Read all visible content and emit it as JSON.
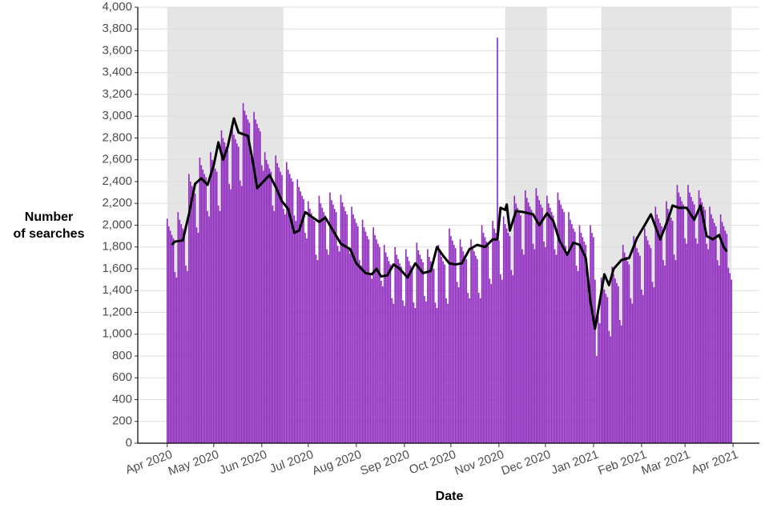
{
  "chart_data": {
    "type": "bar",
    "xlabel": "Date",
    "ylabel_lines": [
      "Number",
      "of searches"
    ],
    "color": "#8f2bbf",
    "xlim": [
      -19,
      382
    ],
    "ylim": [
      0,
      4000
    ],
    "grid": true,
    "shaded_color": "#e5e5e5",
    "shaded": [
      [
        0,
        75
      ],
      [
        218,
        245
      ],
      [
        280,
        364
      ]
    ],
    "xticks": [
      {
        "value": 0,
        "label": "Apr 2020"
      },
      {
        "value": 30,
        "label": "May 2020"
      },
      {
        "value": 61,
        "label": "Jun 2020"
      },
      {
        "value": 91,
        "label": "Jul 2020"
      },
      {
        "value": 122,
        "label": "Aug 2020"
      },
      {
        "value": 153,
        "label": "Sep 2020"
      },
      {
        "value": 183,
        "label": "Oct 2020"
      },
      {
        "value": 214,
        "label": "Nov 2020"
      },
      {
        "value": 244,
        "label": "Dec 2020"
      },
      {
        "value": 275,
        "label": "Jan 2021"
      },
      {
        "value": 306,
        "label": "Feb 2021"
      },
      {
        "value": 334,
        "label": "Mar 2021"
      },
      {
        "value": 365,
        "label": "Apr 2021"
      }
    ],
    "yticks": [
      0,
      200,
      400,
      600,
      800,
      {
        "value": 1000,
        "label": "1,000"
      },
      {
        "value": 1200,
        "label": "1,200"
      },
      {
        "value": 1400,
        "label": "1,400"
      },
      {
        "value": 1600,
        "label": "1,600"
      },
      {
        "value": 1800,
        "label": "1,800"
      },
      {
        "value": 2000,
        "label": "2,000"
      },
      {
        "value": 2200,
        "label": "2,200"
      },
      {
        "value": 2400,
        "label": "2,400"
      },
      {
        "value": 2600,
        "label": "2,600"
      },
      {
        "value": 2800,
        "label": "2,800"
      },
      {
        "value": 3000,
        "label": "3,000"
      },
      {
        "value": 3200,
        "label": "3,200"
      },
      {
        "value": 3400,
        "label": "3,400"
      },
      {
        "value": 3600,
        "label": "3,600"
      },
      {
        "value": 3800,
        "label": "3,800"
      },
      {
        "value": 4000,
        "label": "4,000"
      }
    ],
    "x": [
      0,
      1,
      2,
      3,
      4,
      5,
      6,
      7,
      8,
      9,
      10,
      11,
      12,
      13,
      14,
      15,
      16,
      17,
      18,
      19,
      20,
      21,
      22,
      23,
      24,
      25,
      26,
      27,
      28,
      29,
      30,
      31,
      32,
      33,
      34,
      35,
      36,
      37,
      38,
      39,
      40,
      41,
      42,
      43,
      44,
      45,
      46,
      47,
      48,
      49,
      50,
      51,
      52,
      53,
      54,
      55,
      56,
      57,
      58,
      59,
      60,
      61,
      62,
      63,
      64,
      65,
      66,
      67,
      68,
      69,
      70,
      71,
      72,
      73,
      74,
      75,
      76,
      77,
      78,
      79,
      80,
      81,
      82,
      83,
      84,
      85,
      86,
      87,
      88,
      89,
      90,
      91,
      92,
      93,
      94,
      95,
      96,
      97,
      98,
      99,
      100,
      101,
      102,
      103,
      104,
      105,
      106,
      107,
      108,
      109,
      110,
      111,
      112,
      113,
      114,
      115,
      116,
      117,
      118,
      119,
      120,
      121,
      122,
      123,
      124,
      125,
      126,
      127,
      128,
      129,
      130,
      131,
      132,
      133,
      134,
      135,
      136,
      137,
      138,
      139,
      140,
      141,
      142,
      143,
      144,
      145,
      146,
      147,
      148,
      149,
      150,
      151,
      152,
      153,
      154,
      155,
      156,
      157,
      158,
      159,
      160,
      161,
      162,
      163,
      164,
      165,
      166,
      167,
      168,
      169,
      170,
      171,
      172,
      173,
      174,
      175,
      176,
      177,
      178,
      179,
      180,
      181,
      182,
      183,
      184,
      185,
      186,
      187,
      188,
      189,
      190,
      191,
      192,
      193,
      194,
      195,
      196,
      197,
      198,
      199,
      200,
      201,
      202,
      203,
      204,
      205,
      206,
      207,
      208,
      209,
      210,
      211,
      212,
      213,
      214,
      215,
      216,
      217,
      218,
      219,
      220,
      221,
      222,
      223,
      224,
      225,
      226,
      227,
      228,
      229,
      230,
      231,
      232,
      233,
      234,
      235,
      236,
      237,
      238,
      239,
      240,
      241,
      242,
      243,
      244,
      245,
      246,
      247,
      248,
      249,
      250,
      251,
      252,
      253,
      254,
      255,
      256,
      257,
      258,
      259,
      260,
      261,
      262,
      263,
      264,
      265,
      266,
      267,
      268,
      269,
      270,
      271,
      272,
      273,
      274,
      275,
      276,
      277,
      278,
      279,
      280,
      281,
      282,
      283,
      284,
      285,
      286,
      287,
      288,
      289,
      290,
      291,
      292,
      293,
      294,
      295,
      296,
      297,
      298,
      299,
      300,
      301,
      302,
      303,
      304,
      305,
      306,
      307,
      308,
      309,
      310,
      311,
      312,
      313,
      314,
      315,
      316,
      317,
      318,
      319,
      320,
      321,
      322,
      323,
      324,
      325,
      326,
      327,
      328,
      329,
      330,
      331,
      332,
      333,
      334,
      335,
      336,
      337,
      338,
      339,
      340,
      341,
      342,
      343,
      344,
      345,
      346,
      347,
      348,
      349,
      350,
      351,
      352,
      353,
      354,
      355,
      356,
      357,
      358,
      359,
      360,
      361,
      362,
      363,
      364
    ],
    "values": [
      2060,
      1990,
      1950,
      1910,
      1880,
      1570,
      1520,
      2120,
      2050,
      2010,
      1970,
      1940,
      1630,
      1580,
      2470,
      2400,
      2360,
      2320,
      2290,
      1980,
      1930,
      2620,
      2550,
      2510,
      2470,
      2440,
      2130,
      2080,
      2670,
      2600,
      2560,
      2520,
      2490,
      2180,
      2130,
      2870,
      2800,
      2760,
      2720,
      2690,
      2380,
      2330,
      2900,
      2830,
      2790,
      2750,
      2720,
      2410,
      2360,
      3120,
      3050,
      3010,
      2970,
      2940,
      2630,
      2580,
      3040,
      2970,
      2930,
      2890,
      2860,
      2550,
      2500,
      2670,
      2600,
      2560,
      2520,
      2490,
      2180,
      2130,
      2640,
      2570,
      2530,
      2490,
      2460,
      2150,
      2100,
      2580,
      2510,
      2470,
      2430,
      2400,
      2090,
      2040,
      2420,
      2350,
      2310,
      2270,
      2240,
      1930,
      1880,
      2220,
      2150,
      2110,
      2070,
      2040,
      1730,
      1680,
      2270,
      2200,
      2160,
      2120,
      2090,
      1780,
      1730,
      2300,
      2230,
      2190,
      2150,
      2120,
      1810,
      1760,
      2280,
      2210,
      2170,
      2130,
      2100,
      1790,
      1740,
      2170,
      2100,
      2060,
      2020,
      1990,
      1680,
      1630,
      2050,
      1980,
      1940,
      1900,
      1870,
      1560,
      1510,
      1980,
      1910,
      1870,
      1830,
      1800,
      1490,
      1440,
      1820,
      1750,
      1710,
      1670,
      1640,
      1330,
      1280,
      1800,
      1730,
      1690,
      1650,
      1620,
      1310,
      1260,
      1780,
      1710,
      1670,
      1630,
      1600,
      1290,
      1240,
      1840,
      1770,
      1730,
      1690,
      1660,
      1350,
      1300,
      1780,
      1710,
      1670,
      1630,
      1600,
      1290,
      1240,
      1820,
      1750,
      1710,
      1670,
      1640,
      1330,
      1280,
      1970,
      1900,
      1860,
      1820,
      1790,
      1480,
      1430,
      1870,
      1800,
      1760,
      1720,
      1690,
      1380,
      1330,
      1870,
      1800,
      1760,
      1720,
      1690,
      1380,
      1330,
      2000,
      1930,
      1890,
      1850,
      1820,
      1510,
      1460,
      2040,
      1970,
      1930,
      3720,
      1860,
      1550,
      1500,
      2080,
      2010,
      1970,
      1930,
      1900,
      1590,
      1540,
      2270,
      2200,
      2160,
      2120,
      2090,
      1780,
      1730,
      2320,
      2250,
      2210,
      2170,
      2140,
      1830,
      1780,
      2340,
      2270,
      2230,
      2190,
      2160,
      1850,
      1800,
      2270,
      2200,
      2160,
      2120,
      2090,
      1780,
      1730,
      2300,
      2230,
      2190,
      2150,
      2120,
      1810,
      1760,
      2120,
      2050,
      2010,
      1970,
      1940,
      1630,
      1580,
      2000,
      1930,
      1890,
      1850,
      1820,
      1510,
      1460,
      2000,
      1930,
      1890,
      1500,
      800,
      1200,
      1100,
      1520,
      1450,
      1410,
      1370,
      1340,
      1030,
      980,
      1620,
      1550,
      1510,
      1470,
      1440,
      1130,
      1080,
      1820,
      1750,
      1710,
      1670,
      1640,
      1330,
      1280,
      1900,
      1830,
      1790,
      1750,
      1720,
      1410,
      1360,
      1970,
      1900,
      1860,
      1820,
      1790,
      1480,
      1430,
      2170,
      2100,
      2060,
      2020,
      1990,
      1680,
      1630,
      2220,
      2150,
      2110,
      2070,
      2040,
      1730,
      1680,
      2370,
      2300,
      2260,
      2220,
      2190,
      1880,
      1830,
      2370,
      2300,
      2260,
      2220,
      2190,
      1880,
      1830,
      2320,
      2250,
      2210,
      2170,
      2140,
      1830,
      1780,
      2170,
      2100,
      2060,
      2020,
      1990,
      1680,
      1630,
      2100,
      2030,
      1990,
      1950,
      1920,
      1610,
      1560,
      1500
    ],
    "trend": {
      "color": "#000000",
      "x": [
        3,
        5,
        10,
        14,
        18,
        22,
        26,
        30,
        33,
        36,
        39,
        43,
        46,
        52,
        55,
        58,
        62,
        66,
        70,
        74,
        78,
        82,
        85,
        89,
        94,
        98,
        102,
        107,
        112,
        118,
        122,
        128,
        132,
        135,
        138,
        142,
        146,
        150,
        155,
        160,
        165,
        170,
        174,
        178,
        182,
        186,
        190,
        195,
        200,
        205,
        210,
        213,
        215,
        218,
        219,
        221,
        225,
        230,
        236,
        240,
        245,
        249,
        253,
        258,
        262,
        266,
        270,
        273,
        276,
        279,
        282,
        285,
        288,
        293,
        298,
        303,
        308,
        312,
        318,
        323,
        326,
        330,
        335,
        340,
        344,
        348,
        352,
        356,
        359,
        361
      ],
      "values": [
        1820,
        1850,
        1860,
        2100,
        2380,
        2430,
        2370,
        2550,
        2760,
        2600,
        2720,
        2980,
        2850,
        2820,
        2600,
        2340,
        2400,
        2460,
        2350,
        2220,
        2150,
        1930,
        1950,
        2120,
        2070,
        2030,
        2070,
        1950,
        1830,
        1780,
        1650,
        1560,
        1550,
        1600,
        1530,
        1540,
        1640,
        1600,
        1520,
        1650,
        1560,
        1580,
        1800,
        1720,
        1650,
        1640,
        1650,
        1780,
        1820,
        1800,
        1870,
        1870,
        2160,
        2140,
        2190,
        1950,
        2130,
        2120,
        2100,
        2000,
        2110,
        2040,
        1860,
        1730,
        1840,
        1820,
        1700,
        1300,
        1050,
        1300,
        1550,
        1450,
        1600,
        1680,
        1700,
        1880,
        2000,
        2100,
        1870,
        2050,
        2180,
        2160,
        2160,
        2050,
        2180,
        1900,
        1870,
        1910,
        1800,
        1760
      ]
    }
  }
}
